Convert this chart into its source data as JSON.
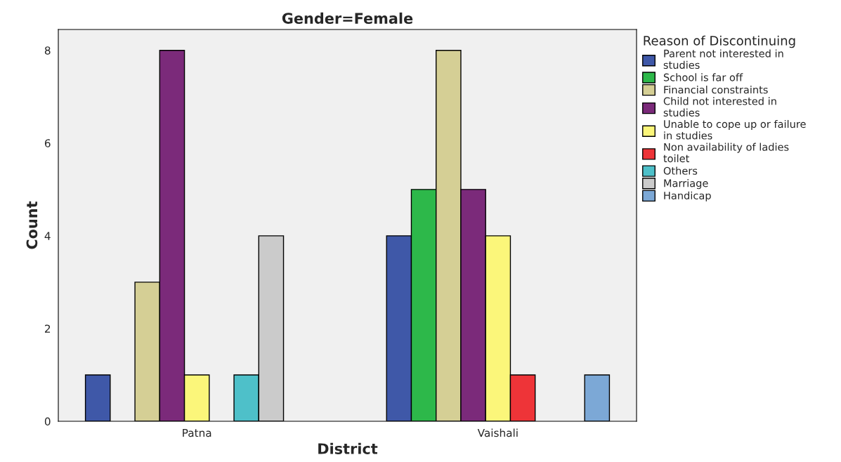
{
  "chart_data": {
    "type": "bar",
    "title": "Gender=Female",
    "xlabel": "District",
    "ylabel": "Count",
    "legend_title": "Reason of Discontinuing",
    "categories": [
      "Patna",
      "Vaishali"
    ],
    "series": [
      {
        "name": "Parent not interested in studies",
        "color": "#3f58a8",
        "values": [
          1,
          4
        ]
      },
      {
        "name": "School is far off",
        "color": "#2db84a",
        "values": [
          null,
          5
        ]
      },
      {
        "name": "Financial constraints",
        "color": "#d5cf95",
        "values": [
          3,
          8
        ]
      },
      {
        "name": "Child not interested in studies",
        "color": "#7b2a7a",
        "values": [
          8,
          5
        ]
      },
      {
        "name": "Unable to cope up or failure in studies",
        "color": "#fbf67a",
        "values": [
          1,
          4
        ]
      },
      {
        "name": "Non availability of ladies toilet",
        "color": "#ee3438",
        "values": [
          null,
          1
        ]
      },
      {
        "name": "Others",
        "color": "#4ec0c9",
        "values": [
          1,
          null
        ]
      },
      {
        "name": "Marriage",
        "color": "#cbcbcb",
        "values": [
          4,
          null
        ]
      },
      {
        "name": "Handicap",
        "color": "#7ca8d6",
        "values": [
          null,
          1
        ]
      }
    ],
    "ylim": [
      0,
      8.45
    ],
    "yticks": [
      0,
      2,
      4,
      6,
      8
    ],
    "grid": false,
    "legend": "right"
  }
}
